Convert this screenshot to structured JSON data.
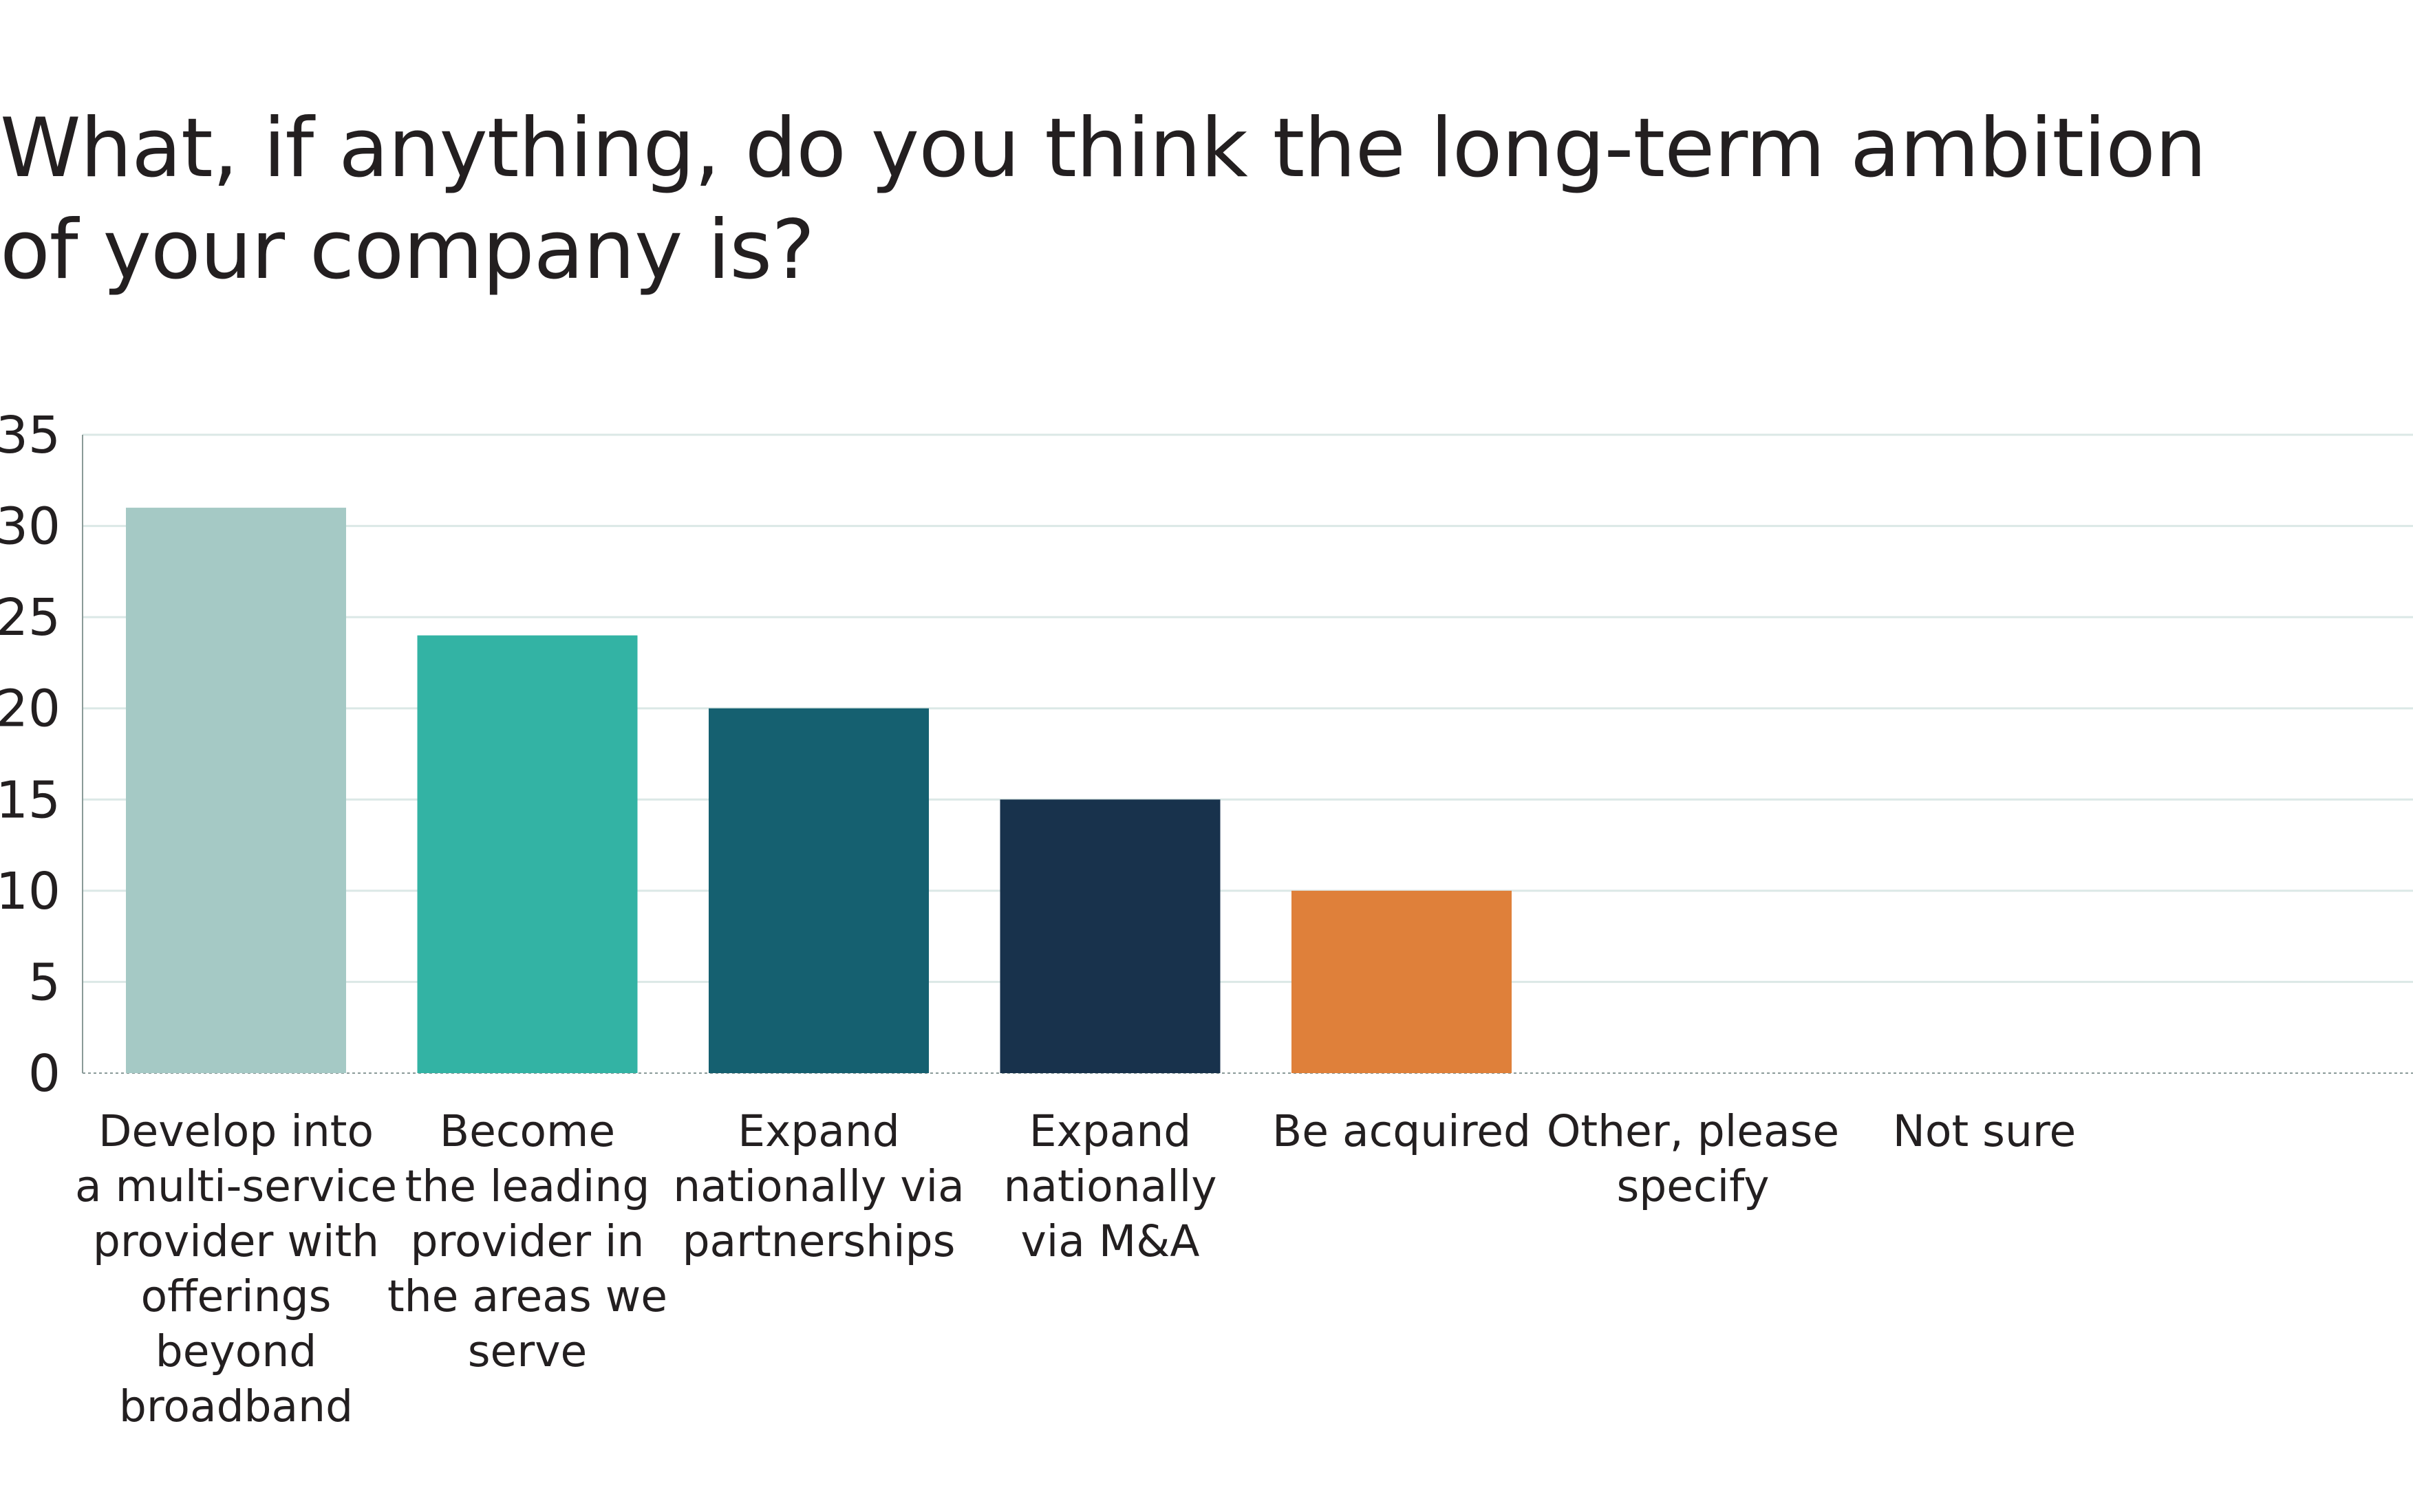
{
  "chart_data": {
    "type": "bar",
    "title": "What, if anything, do you think the long-term ambition of your company is?",
    "xlabel": "",
    "ylabel": "",
    "ylim": [
      0,
      35
    ],
    "yticks": [
      0,
      5,
      10,
      15,
      20,
      25,
      30,
      35
    ],
    "grid": true,
    "legend": "none",
    "categories": [
      "Develop into a multi-service provider with offerings beyond broadband",
      "Become the leading provider in the areas we serve",
      "Expand nationally via partnerships",
      "Expand nationally via M&A",
      "Be acquired",
      "Other, please specify",
      "Not sure"
    ],
    "category_lines": [
      [
        "Develop into",
        "a multi-service",
        "provider with",
        "offerings",
        "beyond",
        "broadband"
      ],
      [
        "Become",
        "the leading",
        "provider in",
        "the areas we",
        "serve"
      ],
      [
        "Expand",
        "nationally via",
        "partnerships"
      ],
      [
        "Expand",
        "nationally",
        "via M&A"
      ],
      [
        "Be acquired"
      ],
      [
        "Other, please",
        "specify"
      ],
      [
        "Not sure"
      ]
    ],
    "values": [
      31,
      24,
      20,
      15,
      10,
      0,
      0
    ],
    "colors": [
      "#a5c9c5",
      "#33b3a4",
      "#156070",
      "#18324c",
      "#df803a",
      "#cccccc",
      "#cccccc"
    ],
    "gridline_color": "#dbe8e6",
    "axis_color": "#8a9a98"
  }
}
